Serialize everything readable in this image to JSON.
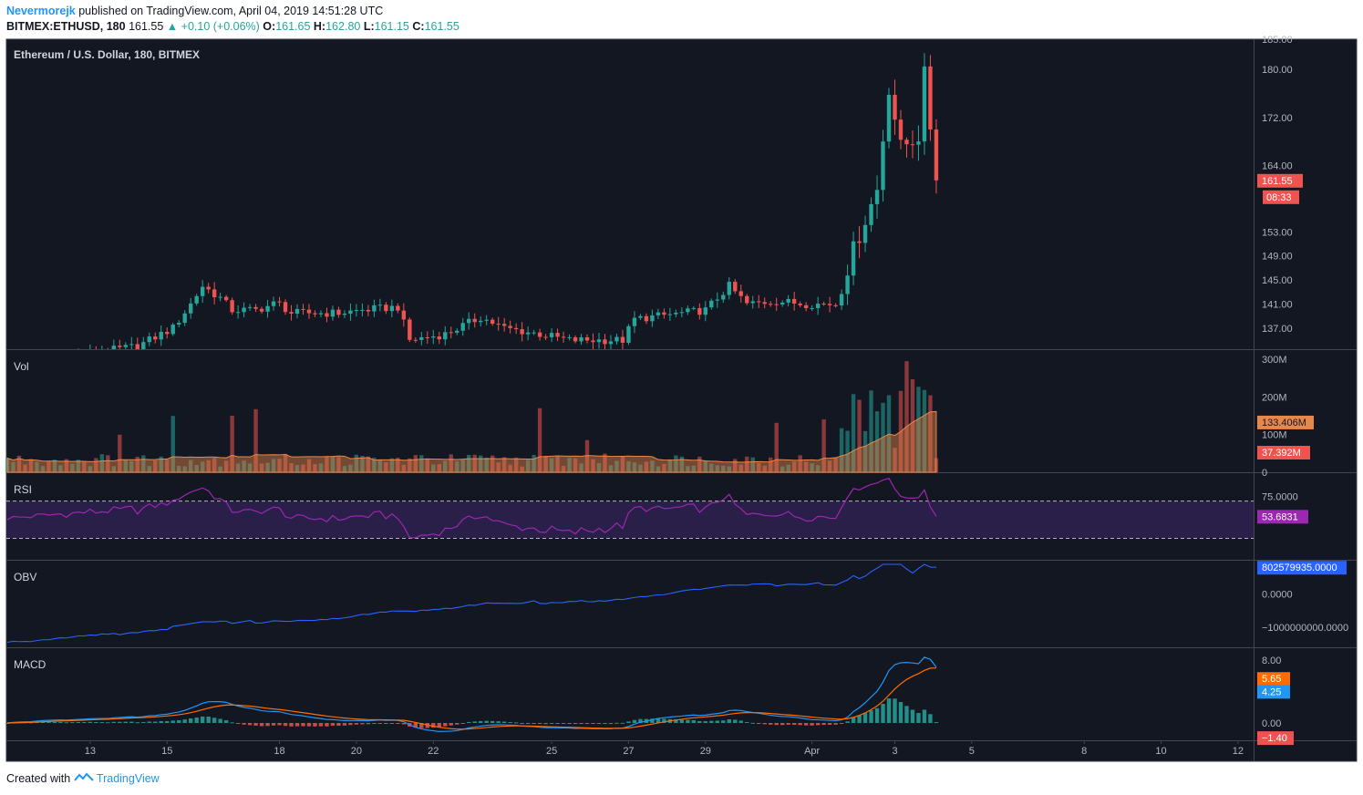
{
  "header": {
    "author": "Nevermorejk",
    "published": "published on TradingView.com, April 04, 2019 14:51:28 UTC",
    "symbol": "BITMEX:ETHUSD, 180",
    "last": "161.55",
    "change": "▲ +0.10 (+0.06%)",
    "o_label": "O:",
    "o_value": "161.65",
    "h_label": "H:",
    "h_value": "162.80",
    "l_label": "L:",
    "l_value": "161.15",
    "c_label": "C:",
    "c_value": "161.55"
  },
  "footer": {
    "created_with": "Created with",
    "brand": "TradingView"
  },
  "colors": {
    "background": "#131722",
    "up": "#26a69a",
    "down": "#ef5350",
    "vol_up": "#26a69a",
    "vol_down": "#ef5350",
    "vol_ma": "#e8874a",
    "rsi": "#9c27b0",
    "rsi_band": "#2a1f48",
    "obv": "#2962ff",
    "macd": "#2196f3",
    "signal": "#ff6d00",
    "hist_up": "#26a69a",
    "hist_down": "#ef5350"
  },
  "chart_data": {
    "type": "candlestick",
    "title": "Ethereum / U.S. Dollar, 180, BITMEX",
    "price_ticks": [
      "185.00",
      "180.00",
      "172.00",
      "164.00",
      "153.00",
      "149.00",
      "145.00",
      "141.00",
      "137.00"
    ],
    "price_tick_values": [
      185,
      180,
      172,
      164,
      153,
      149,
      145,
      141,
      137
    ],
    "price_range": [
      133.5,
      185
    ],
    "last_price_label": "161.55",
    "countdown_label": "08:33",
    "x_labels": [
      "13",
      "15",
      "18",
      "20",
      "22",
      "25",
      "27",
      "29",
      "Apr",
      "3",
      "5",
      "8",
      "10",
      "12"
    ],
    "x_label_index": [
      14,
      27,
      46,
      59,
      72,
      92,
      105,
      118,
      136,
      150,
      163,
      182,
      195,
      208
    ],
    "candles_count": 158,
    "candles_note": "close prices generated from price path keypoints",
    "path_keypoints": [
      [
        0,
        131
      ],
      [
        12,
        132.5
      ],
      [
        22,
        134
      ],
      [
        28,
        137
      ],
      [
        31,
        141
      ],
      [
        33,
        144
      ],
      [
        36,
        142
      ],
      [
        38,
        140
      ],
      [
        42,
        140
      ],
      [
        45,
        141
      ],
      [
        46,
        141
      ],
      [
        48,
        139.5
      ],
      [
        56,
        139.5
      ],
      [
        60,
        140
      ],
      [
        66,
        140.5
      ],
      [
        68,
        135
      ],
      [
        74,
        136
      ],
      [
        80,
        138.8
      ],
      [
        84,
        137
      ],
      [
        90,
        136
      ],
      [
        95,
        135
      ],
      [
        104,
        135
      ],
      [
        106,
        138.5
      ],
      [
        114,
        139.5
      ],
      [
        118,
        140
      ],
      [
        122,
        144
      ],
      [
        125,
        141
      ],
      [
        130,
        141.5
      ],
      [
        135,
        141
      ],
      [
        140,
        141
      ],
      [
        143,
        150
      ],
      [
        147,
        160
      ],
      [
        149,
        177
      ],
      [
        151,
        167
      ],
      [
        154,
        169
      ],
      [
        155,
        179
      ],
      [
        157,
        162
      ],
      [
        159,
        162
      ],
      [
        160,
        161.55
      ]
    ],
    "volume": {
      "label": "Vol",
      "ticks": [
        "300M",
        "200M",
        "100M",
        "0"
      ],
      "tick_values": [
        300,
        200,
        100,
        0
      ],
      "ma_label": "133.406M",
      "last_label": "37.392M",
      "ma_value": 133.406,
      "last_value": 37.392
    },
    "rsi": {
      "label": "RSI",
      "ticks": [
        "75.0000"
      ],
      "tick_values": [
        75
      ],
      "upper": 70,
      "lower": 30,
      "last_label": "53.6831",
      "last_value": 53.6831
    },
    "obv": {
      "label": "OBV",
      "ticks": [
        "0.0000",
        "−1000000000.0000"
      ],
      "tick_values": [
        0,
        -1000000000
      ],
      "last_label": "802579935.0000",
      "last_value": 802579935
    },
    "macd": {
      "label": "MACD",
      "ticks": [
        "8.00",
        "0.00"
      ],
      "tick_values": [
        8,
        0
      ],
      "signal_label": "5.65",
      "macd_label": "4.25",
      "hist_label": "−1.40",
      "signal_value": 5.65,
      "macd_value": 4.25,
      "hist_value": -1.4
    }
  }
}
